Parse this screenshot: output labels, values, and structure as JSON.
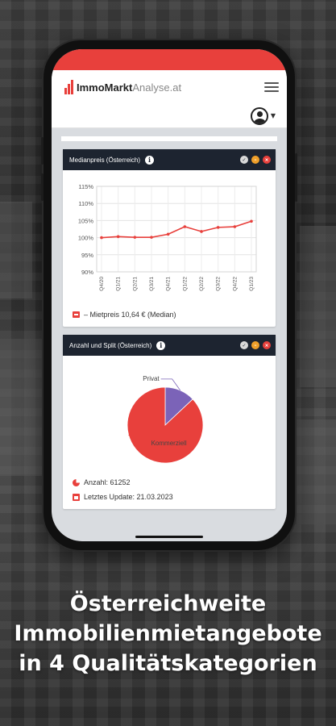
{
  "app": {
    "logo_bold": "ImmoMarkt",
    "logo_light": "Analyse.at"
  },
  "card1": {
    "title": "Medianpreis (Österreich)",
    "legend": "– Mietpreis 10,64 € (Median)"
  },
  "card2": {
    "title": "Anzahl und Split (Österreich)",
    "count_label": "Anzahl: 61252",
    "update_label": "Letztes Update: 21.03.2023"
  },
  "caption": {
    "line1": "Österreichweite",
    "line2": "Immobilienmietangebote",
    "line3": "in 4 Qualitätskategorien"
  },
  "colors": {
    "accent": "#e8403c",
    "header_dark": "#1d2430",
    "pie_private": "#7b63b8"
  },
  "chart_data": [
    {
      "type": "line",
      "categories": [
        "Q4/20",
        "Q1/21",
        "Q2/21",
        "Q3/21",
        "Q4/21",
        "Q1/22",
        "Q2/22",
        "Q3/22",
        "Q4/22",
        "Q1/23"
      ],
      "series": [
        {
          "values": [
            100.0,
            100.3,
            100.1,
            100.1,
            101.0,
            103.2,
            101.8,
            103.0,
            103.2,
            104.8
          ]
        }
      ],
      "yticks": [
        "90%",
        "95%",
        "100%",
        "105%",
        "110%",
        "115%"
      ],
      "ylim": [
        90,
        115
      ],
      "grid": true
    },
    {
      "type": "pie",
      "labels": [
        "Privat",
        "Kommerziell"
      ],
      "values": [
        13,
        87
      ]
    }
  ]
}
